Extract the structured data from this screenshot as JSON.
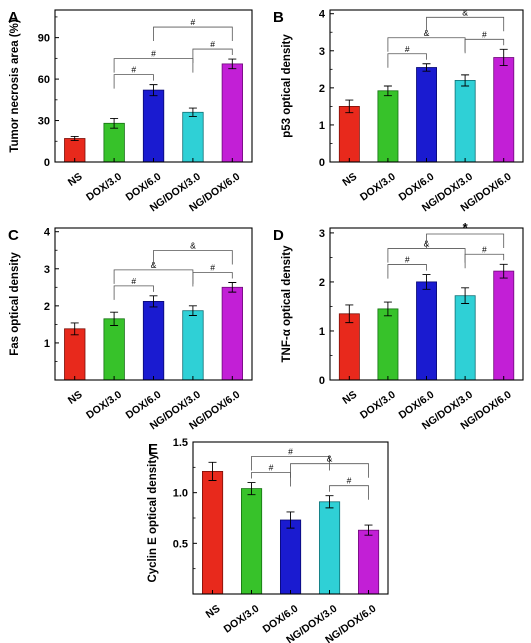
{
  "chart_data": [
    {
      "panel": "A",
      "type": "bar",
      "categories": [
        "NS",
        "DOX/3.0",
        "DOX/6.0",
        "NG/DOX/3.0",
        "NG/DOX/6.0"
      ],
      "values": [
        17,
        28,
        52,
        36,
        71
      ],
      "errors": [
        1.5,
        3.5,
        4,
        3,
        3.5
      ],
      "ylabel": "Tumor necrosis area (%)",
      "ylim": [
        0,
        110
      ],
      "yticks": [
        0,
        30,
        60,
        90
      ],
      "brackets": [
        {
          "from": 1,
          "to": 2,
          "symbol": "#"
        },
        {
          "from": 1,
          "to": 3,
          "symbol": "#"
        },
        {
          "from": 3,
          "to": 4,
          "symbol": "#"
        },
        {
          "from": 2,
          "to": 4,
          "symbol": "#"
        }
      ]
    },
    {
      "panel": "B",
      "type": "bar",
      "categories": [
        "NS",
        "DOX/3.0",
        "DOX/6.0",
        "NG/DOX/3.0",
        "NG/DOX/6.0"
      ],
      "values": [
        1.5,
        1.92,
        2.55,
        2.2,
        2.82
      ],
      "errors": [
        0.17,
        0.13,
        0.1,
        0.15,
        0.22
      ],
      "ylabel": "p53 optical density",
      "ylim": [
        0,
        4.1
      ],
      "yticks": [
        0,
        1,
        2,
        3,
        4
      ],
      "brackets": [
        {
          "from": 1,
          "to": 2,
          "symbol": "#"
        },
        {
          "from": 3,
          "to": 4,
          "symbol": "#"
        },
        {
          "from": 1,
          "to": 3,
          "symbol": "&"
        },
        {
          "from": 2,
          "to": 4,
          "symbol": "&"
        }
      ]
    },
    {
      "panel": "C",
      "type": "bar",
      "categories": [
        "NS",
        "DOX/3.0",
        "DOX/6.0",
        "NG/DOX/3.0",
        "NG/DOX/6.0"
      ],
      "values": [
        1.38,
        1.65,
        2.12,
        1.87,
        2.5
      ],
      "errors": [
        0.16,
        0.18,
        0.15,
        0.13,
        0.13
      ],
      "ylabel": "Fas optical density",
      "ylim": [
        0,
        4.1
      ],
      "yticks": [
        1,
        2,
        3,
        4
      ],
      "brackets": [
        {
          "from": 1,
          "to": 2,
          "symbol": "#"
        },
        {
          "from": 3,
          "to": 4,
          "symbol": "#"
        },
        {
          "from": 1,
          "to": 3,
          "symbol": "&"
        },
        {
          "from": 2,
          "to": 4,
          "symbol": "&"
        }
      ]
    },
    {
      "panel": "D",
      "type": "bar",
      "categories": [
        "NS",
        "DOX/3.0",
        "DOX/6.0",
        "NG/DOX/3.0",
        "NG/DOX/6.0"
      ],
      "values": [
        1.35,
        1.45,
        2.0,
        1.72,
        2.22
      ],
      "errors": [
        0.18,
        0.14,
        0.15,
        0.16,
        0.14
      ],
      "ylabel": "TNF-α optical density",
      "ylim": [
        0,
        3.1
      ],
      "yticks": [
        0,
        1,
        2,
        3
      ],
      "brackets": [
        {
          "from": 1,
          "to": 2,
          "symbol": "#"
        },
        {
          "from": 3,
          "to": 4,
          "symbol": "#"
        },
        {
          "from": 1,
          "to": 3,
          "symbol": "&"
        },
        {
          "from": 2,
          "to": 4,
          "symbol": "*"
        }
      ]
    },
    {
      "panel": "E",
      "type": "bar",
      "categories": [
        "NS",
        "DOX/3.0",
        "DOX/6.0",
        "NG/DOX/3.0",
        "NG/DOX/6.0"
      ],
      "values": [
        1.21,
        1.04,
        0.73,
        0.91,
        0.63
      ],
      "errors": [
        0.09,
        0.06,
        0.08,
        0.06,
        0.05
      ],
      "ylabel": "Cyclin E optical density",
      "ylim": [
        0,
        1.5
      ],
      "yticks": [
        0.5,
        1.0,
        1.5
      ],
      "ytick_labels": [
        "0.5",
        "1.0",
        "1.5"
      ],
      "brackets": [
        {
          "from": 1,
          "to": 2,
          "symbol": "#"
        },
        {
          "from": 3,
          "to": 4,
          "symbol": "#"
        },
        {
          "from": 1,
          "to": 3,
          "symbol": "#"
        },
        {
          "from": 2,
          "to": 4,
          "symbol": "&"
        }
      ]
    }
  ],
  "bar_colors": [
    "#e8291c",
    "#37c22a",
    "#1a1bd0",
    "#2fd0d6",
    "#c21fd6"
  ],
  "bar_edge_colors": [
    "#7a1008",
    "#137010",
    "#080870",
    "#0f6f74",
    "#6e0a78"
  ]
}
